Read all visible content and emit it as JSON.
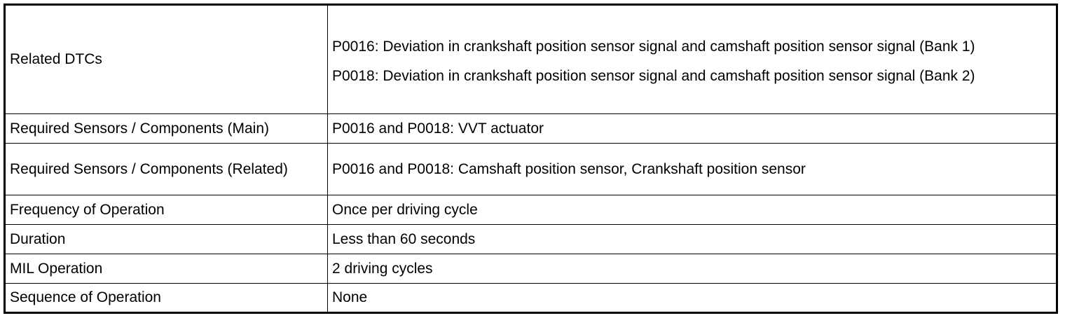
{
  "table": {
    "rows": [
      {
        "label": "Related DTCs",
        "values": [
          "P0016: Deviation in crankshaft position sensor signal and camshaft position sensor signal (Bank 1)",
          "P0018: Deviation in crankshaft position sensor signal and camshaft position sensor signal (Bank 2)"
        ]
      },
      {
        "label": "Required Sensors / Components (Main)",
        "value": "P0016 and P0018: VVT actuator"
      },
      {
        "label": "Required Sensors / Components (Related)",
        "value": "P0016 and P0018: Camshaft position sensor, Crankshaft position sensor"
      },
      {
        "label": "Frequency of Operation",
        "value": "Once per driving cycle"
      },
      {
        "label": "Duration",
        "value": "Less than 60 seconds"
      },
      {
        "label": "MIL Operation",
        "value": "2 driving cycles"
      },
      {
        "label": "Sequence of Operation",
        "value": "None"
      }
    ]
  }
}
